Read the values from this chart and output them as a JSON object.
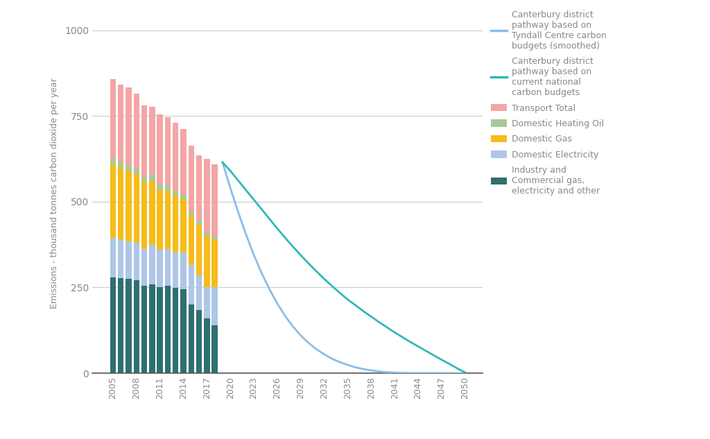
{
  "years_bars": [
    2005,
    2006,
    2007,
    2008,
    2009,
    2010,
    2011,
    2012,
    2013,
    2014,
    2015,
    2016,
    2017,
    2018
  ],
  "industry_commercial": [
    280,
    278,
    275,
    272,
    255,
    260,
    250,
    255,
    248,
    245,
    200,
    185,
    160,
    140
  ],
  "domestic_electricity": [
    115,
    112,
    110,
    108,
    108,
    115,
    110,
    108,
    105,
    108,
    115,
    100,
    90,
    110
  ],
  "domestic_gas": [
    215,
    210,
    205,
    200,
    195,
    185,
    175,
    170,
    165,
    155,
    145,
    148,
    150,
    140
  ],
  "domestic_heating_oil": [
    18,
    17,
    16,
    17,
    15,
    18,
    14,
    16,
    14,
    13,
    12,
    14,
    10,
    8
  ],
  "transport_total": [
    230,
    225,
    228,
    218,
    208,
    198,
    205,
    198,
    198,
    192,
    192,
    188,
    215,
    210
  ],
  "color_industry": "#2e7070",
  "color_electricity": "#aec6e8",
  "color_gas": "#f5bc1a",
  "color_heating_oil": "#a8c99a",
  "color_transport": "#f4a5a5",
  "tyndall_x": [
    2019,
    2020,
    2021,
    2022,
    2023,
    2024,
    2025,
    2026,
    2027,
    2028,
    2029,
    2030,
    2031,
    2032,
    2033,
    2034,
    2035,
    2036,
    2037,
    2038,
    2039,
    2040,
    2041,
    2042,
    2043,
    2044,
    2045,
    2046,
    2047,
    2048,
    2049,
    2050
  ],
  "tyndall_y": [
    615,
    540,
    470,
    405,
    345,
    292,
    245,
    203,
    167,
    136,
    110,
    88,
    70,
    55,
    42,
    32,
    24,
    17,
    12,
    8,
    5,
    3,
    1.5,
    0.8,
    0.4,
    0.2,
    0.1,
    0.05,
    0.02,
    0.01,
    0.0,
    0.0
  ],
  "national_x": [
    2019,
    2020,
    2021,
    2022,
    2023,
    2024,
    2025,
    2026,
    2027,
    2028,
    2029,
    2030,
    2031,
    2032,
    2033,
    2034,
    2035,
    2036,
    2037,
    2038,
    2039,
    2040,
    2041,
    2042,
    2043,
    2044,
    2045,
    2046,
    2047,
    2048,
    2049,
    2050
  ],
  "national_y": [
    615,
    590,
    562,
    534,
    506,
    478,
    450,
    422,
    395,
    369,
    344,
    320,
    297,
    275,
    254,
    234,
    215,
    198,
    181,
    165,
    149,
    134,
    119,
    105,
    91,
    78,
    65,
    52,
    39,
    27,
    14,
    2
  ],
  "color_tyndall": "#8bbde8",
  "color_national": "#30b8b8",
  "ylabel": "Emissions - thousand tonnes carbon dioxide per year",
  "ylim": [
    0,
    1050
  ],
  "yticks": [
    0,
    250,
    500,
    750,
    1000
  ],
  "xticks": [
    2005,
    2008,
    2011,
    2014,
    2017,
    2020,
    2023,
    2026,
    2029,
    2032,
    2035,
    2038,
    2041,
    2044,
    2047,
    2050
  ],
  "bar_width": 0.75,
  "background_color": "#ffffff",
  "grid_color": "#cccccc",
  "text_color": "#888888",
  "figwidth": 10.24,
  "figheight": 6.33
}
